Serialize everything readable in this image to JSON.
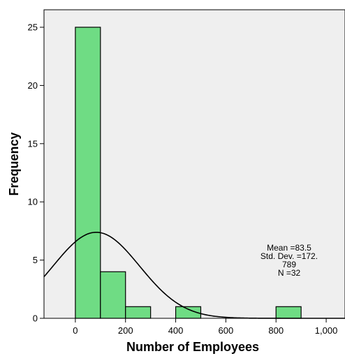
{
  "chart_data": {
    "type": "bar",
    "subtype": "histogram",
    "xlabel": "Number of Employees",
    "ylabel": "Frequency",
    "xlim": [
      -125,
      1075
    ],
    "ylim": [
      0,
      26.5
    ],
    "x_ticks": [
      0,
      200,
      400,
      600,
      800,
      1000
    ],
    "x_tick_labels": [
      "0",
      "200",
      "400",
      "600",
      "800",
      "1,000"
    ],
    "y_ticks": [
      0,
      5,
      10,
      15,
      20,
      25
    ],
    "y_tick_labels": [
      "0",
      "5",
      "10",
      "15",
      "20",
      "25"
    ],
    "bin_width": 100,
    "bins": [
      {
        "start": 0,
        "end": 100,
        "count": 25
      },
      {
        "start": 100,
        "end": 200,
        "count": 4
      },
      {
        "start": 200,
        "end": 300,
        "count": 1
      },
      {
        "start": 400,
        "end": 500,
        "count": 1
      },
      {
        "start": 800,
        "end": 900,
        "count": 1
      }
    ],
    "normal_curve": {
      "mean": 83.5,
      "std_dev": 172.789,
      "n": 32
    },
    "stats_lines": [
      "Mean =83.5",
      "Std. Dev. =172.",
      "789",
      "N =32"
    ],
    "colors": {
      "bar_fill": "#6fdc84",
      "bar_stroke": "#000000",
      "plot_background": "#efefef",
      "curve": "#000000"
    },
    "grid": false,
    "legend": "none"
  }
}
